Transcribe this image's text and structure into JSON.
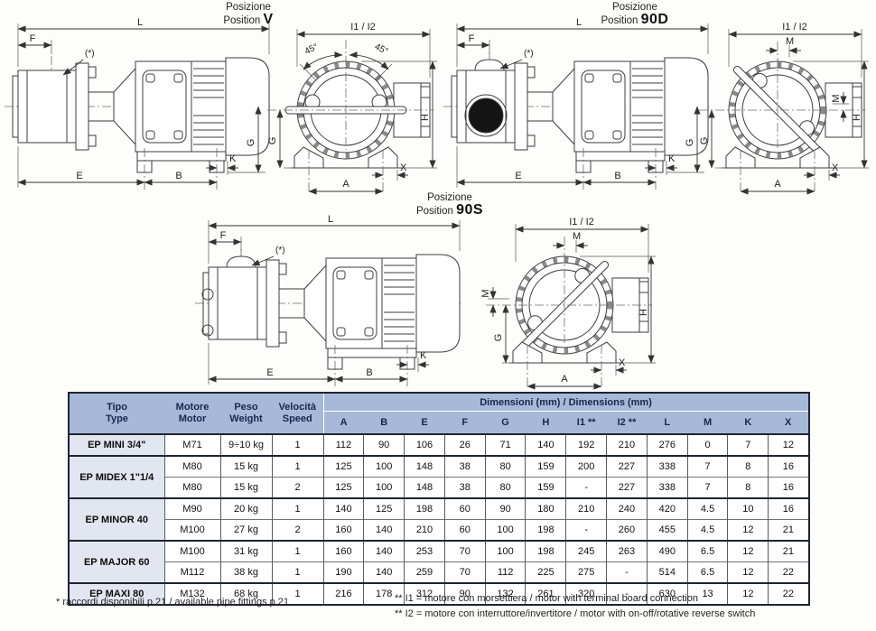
{
  "titles": {
    "v": {
      "it": "Posizione",
      "en": "Position",
      "code": "V"
    },
    "d90": {
      "it": "Posizione",
      "en": "Position",
      "code": "90D"
    },
    "s90": {
      "it": "Posizione",
      "en": "Position",
      "code": "90S"
    }
  },
  "labels": {
    "L": "L",
    "F": "F",
    "E": "E",
    "B": "B",
    "K": "K",
    "G": "G",
    "H": "H",
    "A": "A",
    "X": "X",
    "M": "M",
    "i12": "I1 / I2",
    "deg45": "45°",
    "star": "(*)"
  },
  "table": {
    "headers": {
      "tipo_it": "Tipo",
      "tipo_en": "Type",
      "motore_it": "Motore",
      "motore_en": "Motor",
      "peso_it": "Peso",
      "peso_en": "Weight",
      "vel_it": "Velocità",
      "vel_en": "Speed",
      "dims_group": "Dimensioni (mm) / Dimensions (mm)",
      "dim_cols": [
        "A",
        "B",
        "E",
        "F",
        "G",
        "H",
        "I1 **",
        "I2 **",
        "L",
        "M",
        "K",
        "X"
      ]
    },
    "groups": [
      {
        "type": "EP MINI 3/4\"",
        "rows": [
          {
            "motor": "M71",
            "weight": "9÷10 kg",
            "speed": "1",
            "dims": [
              "112",
              "90",
              "106",
              "26",
              "71",
              "140",
              "192",
              "210",
              "276",
              "0",
              "7",
              "12"
            ]
          }
        ]
      },
      {
        "type": "EP MIDEX 1\"1/4",
        "rows": [
          {
            "motor": "M80",
            "weight": "15 kg",
            "speed": "1",
            "dims": [
              "125",
              "100",
              "148",
              "38",
              "80",
              "159",
              "200",
              "227",
              "338",
              "7",
              "8",
              "16"
            ]
          },
          {
            "motor": "M80",
            "weight": "15 kg",
            "speed": "2",
            "dims": [
              "125",
              "100",
              "148",
              "38",
              "80",
              "159",
              "-",
              "227",
              "338",
              "7",
              "8",
              "16"
            ]
          }
        ]
      },
      {
        "type": "EP MINOR 40",
        "rows": [
          {
            "motor": "M90",
            "weight": "20 kg",
            "speed": "1",
            "dims": [
              "140",
              "125",
              "198",
              "60",
              "90",
              "180",
              "210",
              "240",
              "420",
              "4.5",
              "10",
              "16"
            ]
          },
          {
            "motor": "M100",
            "weight": "27 kg",
            "speed": "2",
            "dims": [
              "160",
              "140",
              "210",
              "60",
              "100",
              "198",
              "-",
              "260",
              "455",
              "4.5",
              "12",
              "21"
            ]
          }
        ]
      },
      {
        "type": "EP MAJOR 60",
        "rows": [
          {
            "motor": "M100",
            "weight": "31 kg",
            "speed": "1",
            "dims": [
              "160",
              "140",
              "253",
              "70",
              "100",
              "198",
              "245",
              "263",
              "490",
              "6.5",
              "12",
              "21"
            ]
          },
          {
            "motor": "M112",
            "weight": "38 kg",
            "speed": "1",
            "dims": [
              "190",
              "140",
              "259",
              "70",
              "112",
              "225",
              "275",
              "-",
              "514",
              "6.5",
              "12",
              "22"
            ]
          }
        ]
      },
      {
        "type": "EP MAXI 80",
        "rows": [
          {
            "motor": "M132",
            "weight": "68 kg",
            "speed": "1",
            "dims": [
              "216",
              "178",
              "312",
              "90",
              "132",
              "261",
              "320",
              "-",
              "630",
              "13",
              "12",
              "22"
            ]
          }
        ]
      }
    ]
  },
  "footnotes": {
    "left": "* raccordi disponibili p.21 / available pipe fittings p.21",
    "right1": "** I1 = motore con morsettiera / motor with terminal board connection",
    "right2": "** I2 = motore con interruttore/invertitore / motor with on-off/rotative reverse switch"
  },
  "colors": {
    "header_bg": "#a7b9d8",
    "header_text": "#15294e",
    "type_col_bg": "#e2e6f0"
  }
}
